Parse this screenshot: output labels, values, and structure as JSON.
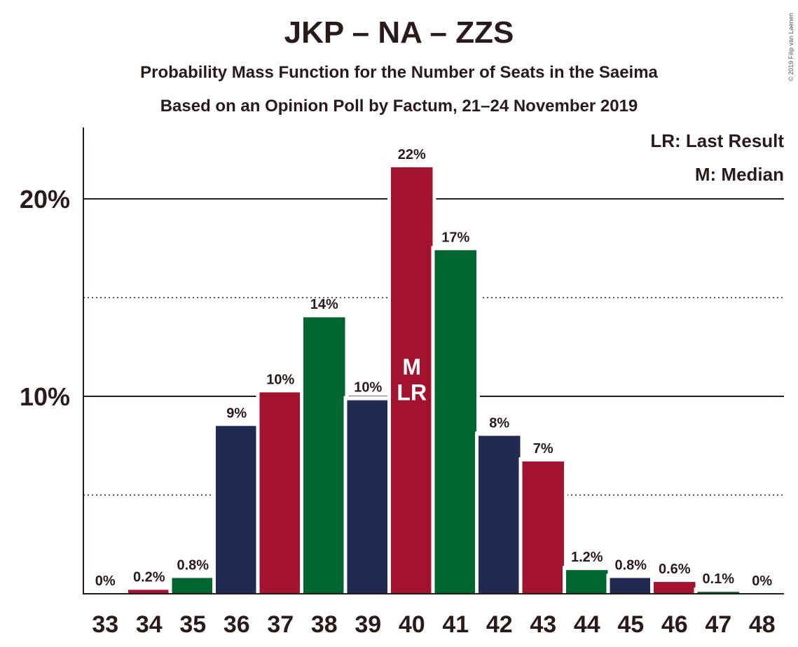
{
  "chart_data": {
    "type": "bar",
    "title": "JKP – NA – ZZS",
    "subtitle": "Probability Mass Function for the Number of Seats in the Saeima",
    "subtitle2": "Based on an Opinion Poll by Factum, 21–24 November 2019",
    "copyright": "© 2019 Filip van Laenen",
    "legend": {
      "lr": "LR: Last Result",
      "m": "M: Median",
      "placement": "top-right"
    },
    "categories": [
      "33",
      "34",
      "35",
      "36",
      "37",
      "38",
      "39",
      "40",
      "41",
      "42",
      "43",
      "44",
      "45",
      "46",
      "47",
      "48"
    ],
    "values": [
      0,
      0.2,
      0.8,
      8.5,
      10.2,
      14.0,
      9.8,
      21.6,
      17.4,
      8.0,
      6.7,
      1.2,
      0.8,
      0.6,
      0.1,
      0
    ],
    "data_labels": [
      "0%",
      "0.2%",
      "0.8%",
      "9%",
      "10%",
      "14%",
      "10%",
      "22%",
      "17%",
      "8%",
      "7%",
      "1.2%",
      "0.8%",
      "0.6%",
      "0.1%",
      "0%"
    ],
    "bar_colors": [
      "#a3122f",
      "#a3122f",
      "#006630",
      "#222a52",
      "#a3122f",
      "#006630",
      "#222a52",
      "#a3122f",
      "#006630",
      "#222a52",
      "#a3122f",
      "#006630",
      "#222a52",
      "#a3122f",
      "#006630",
      "#222a52"
    ],
    "median_category": "40",
    "last_result_category": "40",
    "median_marker": "M",
    "last_result_marker": "LR",
    "ylim": [
      0,
      23.5
    ],
    "yticks": [
      {
        "value": 10,
        "label": "10%"
      },
      {
        "value": 20,
        "label": "20%"
      }
    ],
    "grid": {
      "solid": [
        10,
        20
      ],
      "dotted": [
        5,
        15
      ]
    },
    "xlabel": "",
    "ylabel": ""
  }
}
